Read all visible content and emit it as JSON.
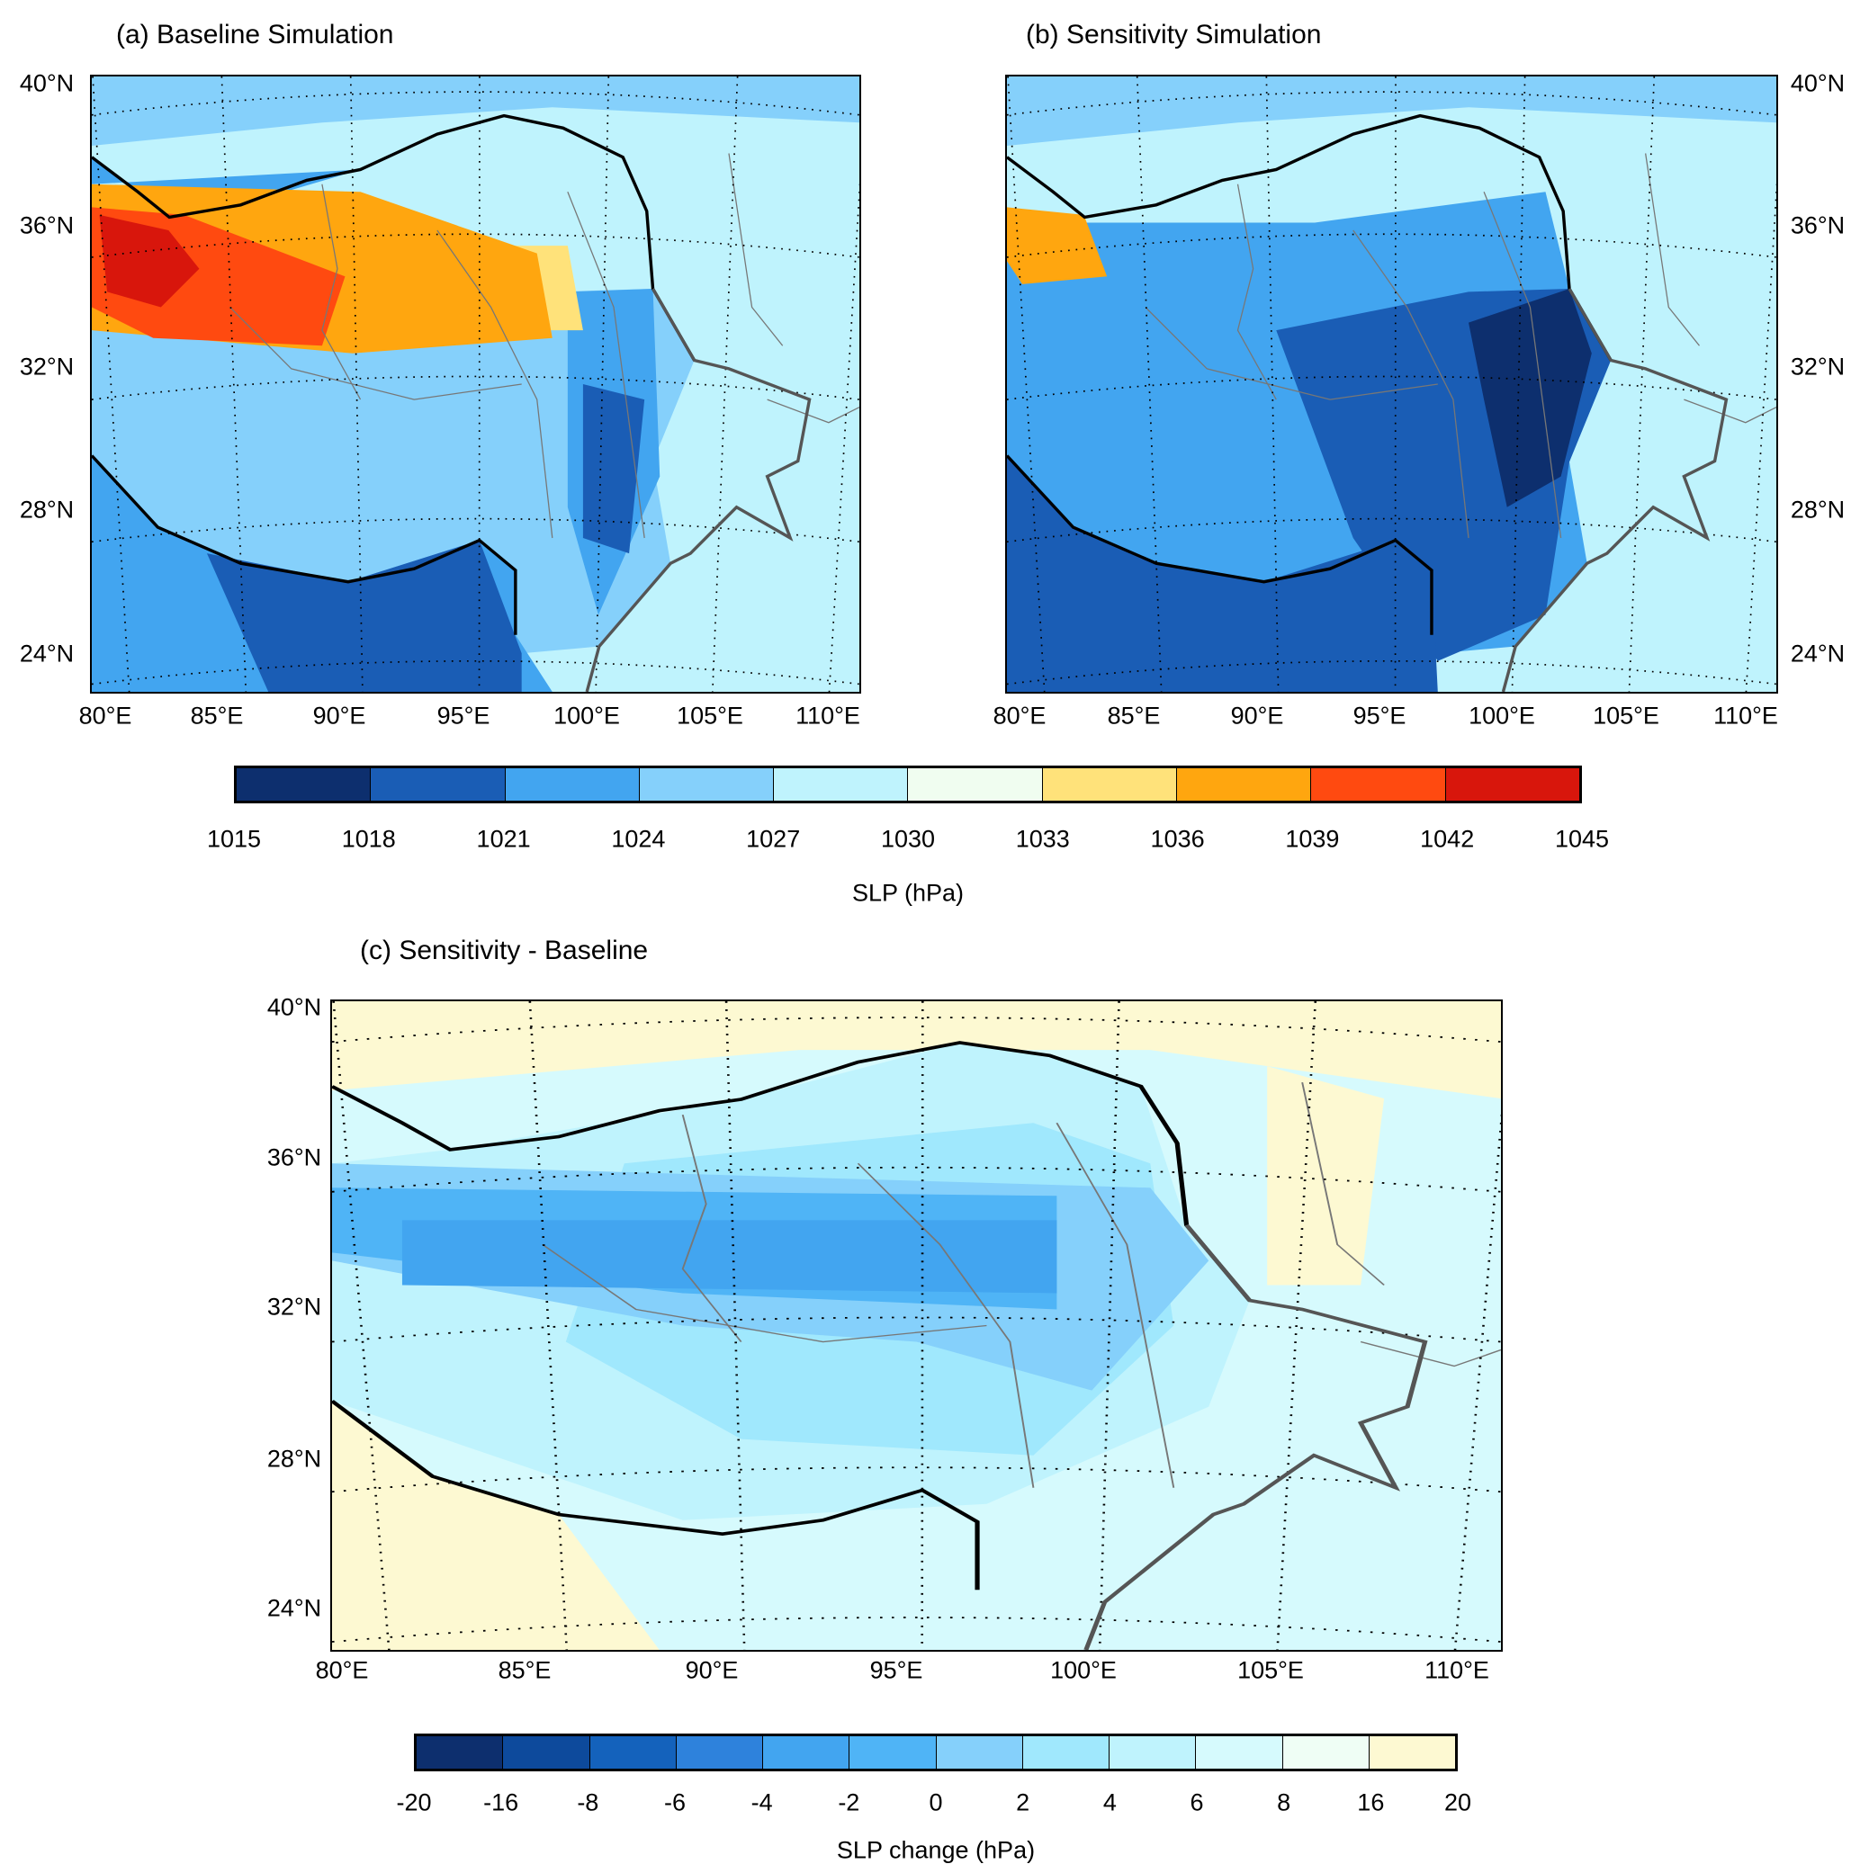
{
  "panels": {
    "a": {
      "title": "(a) Baseline Simulation"
    },
    "b": {
      "title": "(b) Sensitivity Simulation"
    },
    "c": {
      "title": "(c) Sensitivity - Baseline"
    }
  },
  "lat_labels": [
    "40°N",
    "36°N",
    "32°N",
    "28°N",
    "24°N"
  ],
  "lon_labels": [
    "80°E",
    "85°E",
    "90°E",
    "95°E",
    "100°E",
    "105°E",
    "110°E"
  ],
  "colorbar_slp": {
    "label": "SLP (hPa)",
    "ticks": [
      "1015",
      "1018",
      "1021",
      "1024",
      "1027",
      "1030",
      "1033",
      "1036",
      "1039",
      "1042",
      "1045"
    ],
    "colors": [
      "#0d2f6e",
      "#1a5db5",
      "#42a5f0",
      "#85d0fb",
      "#bff3fd",
      "#f0fdf0",
      "#ffe27a",
      "#ffa60f",
      "#ff4a10",
      "#d8160c"
    ]
  },
  "colorbar_change": {
    "label": "SLP change (hPa)",
    "ticks": [
      "-20",
      "-16",
      "-8",
      "-6",
      "-4",
      "-2",
      "0",
      "2",
      "4",
      "6",
      "8",
      "16",
      "20"
    ],
    "colors": [
      "#0d2f6e",
      "#0d4a9c",
      "#1462bc",
      "#2e82dc",
      "#42a5f0",
      "#4fb4f6",
      "#85d0fb",
      "#a0e8fd",
      "#bff3fd",
      "#d6fafd",
      "#effef5",
      "#fdf9d2"
    ]
  }
}
